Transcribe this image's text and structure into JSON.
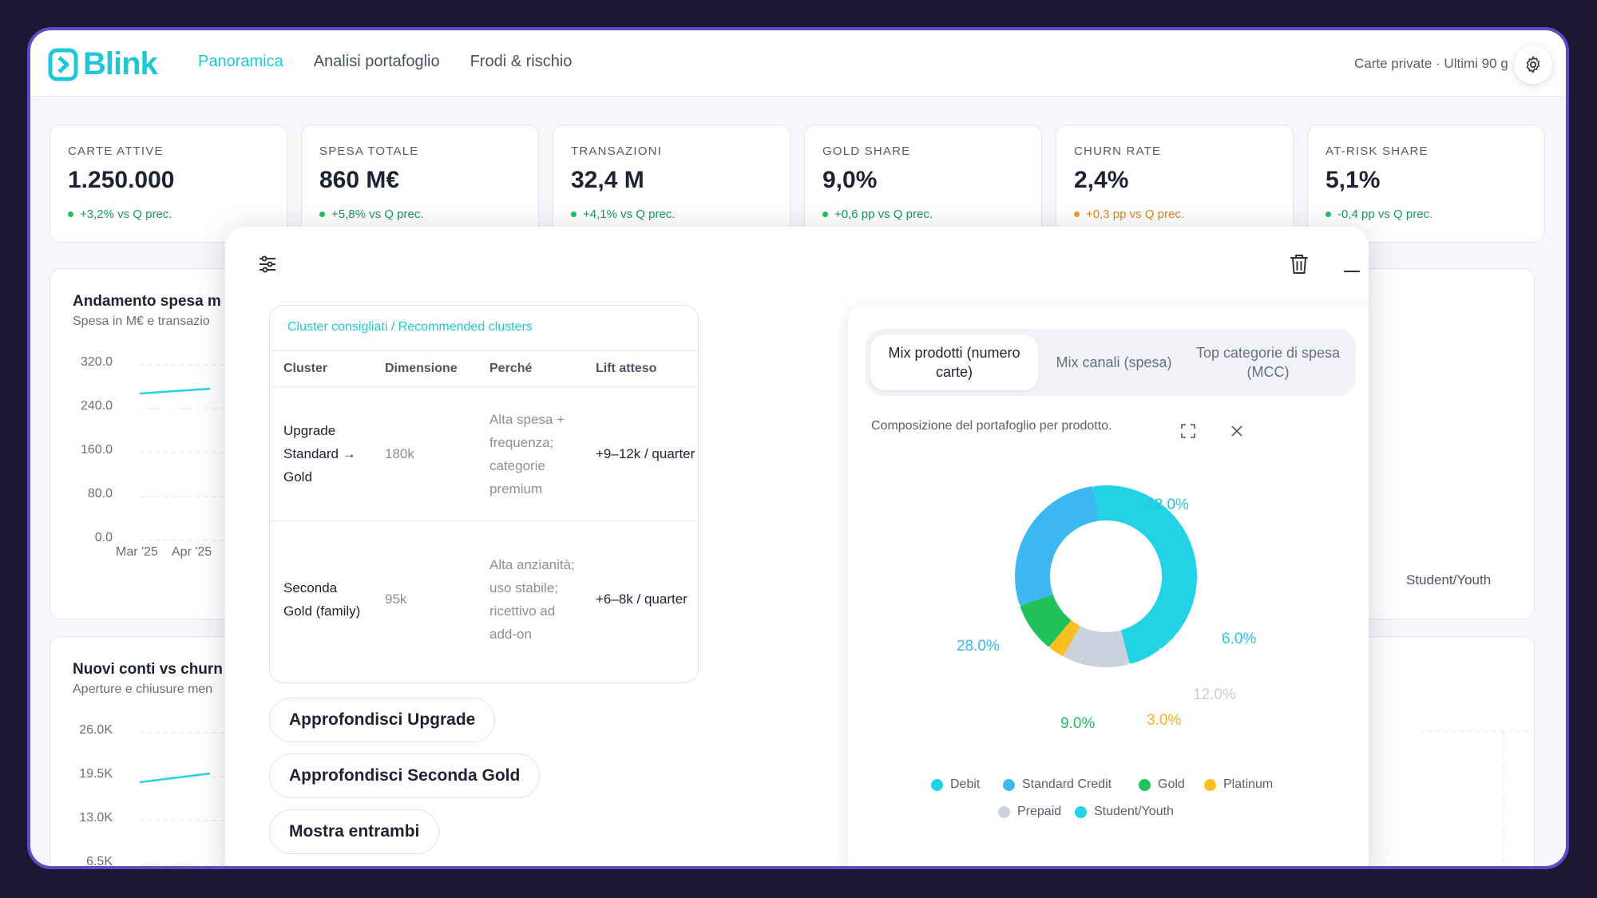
{
  "app": {
    "name": "Blink"
  },
  "nav": [
    {
      "label": "Panoramica"
    },
    {
      "label": "Analisi portafoglio"
    },
    {
      "label": "Frodi & rischio"
    }
  ],
  "scope": "Carte private · Ultimi 90 g",
  "kpis": [
    {
      "label": "CARTE ATTIVE",
      "value": "1.250.000",
      "delta": "+3,2% vs Q prec.",
      "status": "positive"
    },
    {
      "label": "SPESA TOTALE",
      "value": "860 M€",
      "delta": "+5,8% vs Q prec.",
      "status": "positive"
    },
    {
      "label": "TRANSAZIONI",
      "value": "32,4 M",
      "delta": "+4,1% vs Q prec.",
      "status": "positive"
    },
    {
      "label": "GOLD SHARE",
      "value": "9,0%",
      "delta": "+0,6 pp vs Q prec.",
      "status": "positive"
    },
    {
      "label": "CHURN RATE",
      "value": "2,4%",
      "delta": "+0,3 pp vs Q prec.",
      "status": "warning"
    },
    {
      "label": "AT-RISK SHARE",
      "value": "5,1%",
      "delta": "-0,4 pp vs Q prec.",
      "status": "positive"
    }
  ],
  "bg_cards": {
    "spend": {
      "title": "Andamento spesa m",
      "subtitle": "Spesa in M€ e transazio",
      "yticks": [
        "320.0",
        "240.0",
        "160.0",
        "80.0",
        "0.0"
      ],
      "xticks": [
        "Mar '25",
        "Apr '25"
      ]
    },
    "accounts": {
      "title": "Nuovi conti vs churn",
      "subtitle": "Aperture e chiusure men",
      "yticks": [
        "26.0K",
        "19.5K",
        "13.0K",
        "6.5K"
      ]
    },
    "right_label": "Student/Youth"
  },
  "recommend": {
    "header": "Cluster consigliati / Recommended clusters",
    "columns": [
      "Cluster",
      "Dimensione",
      "Perché",
      "Lift atteso"
    ],
    "rows": [
      {
        "cluster": "Upgrade Standard → Gold",
        "size": "180k",
        "why": "Alta spesa + frequenza; categorie premium",
        "lift": "+9–12k / quarter"
      },
      {
        "cluster": "Seconda Gold (family)",
        "size": "95k",
        "why": "Alta anzianità; uso stabile; ricettivo ad add-on",
        "lift": "+6–8k / quarter"
      }
    ]
  },
  "actions": [
    "Approfondisci Upgrade",
    "Approfondisci Seconda Gold",
    "Mostra entrambi"
  ],
  "chart_tabs": [
    "Mix prodotti (numero carte)",
    "Mix canali (spesa)",
    "Top categorie di spesa (MCC)"
  ],
  "chart_description": "Composizione del portafoglio per prodotto.",
  "chart_data": {
    "type": "pie",
    "donut": true,
    "categories": [
      "Debit",
      "Standard Credit",
      "Gold",
      "Platinum",
      "Prepaid",
      "Student/Youth"
    ],
    "values": [
      42.0,
      28.0,
      9.0,
      3.0,
      12.0,
      6.0
    ],
    "labels": [
      "42.0%",
      "28.0%",
      "9.0%",
      "3.0%",
      "12.0%",
      "6.0%"
    ],
    "colors": [
      "#22d3e6",
      "#3db8f0",
      "#21c15e",
      "#fbbf24",
      "#cbd2de",
      "#22d3e6"
    ],
    "legend": "bottom"
  }
}
